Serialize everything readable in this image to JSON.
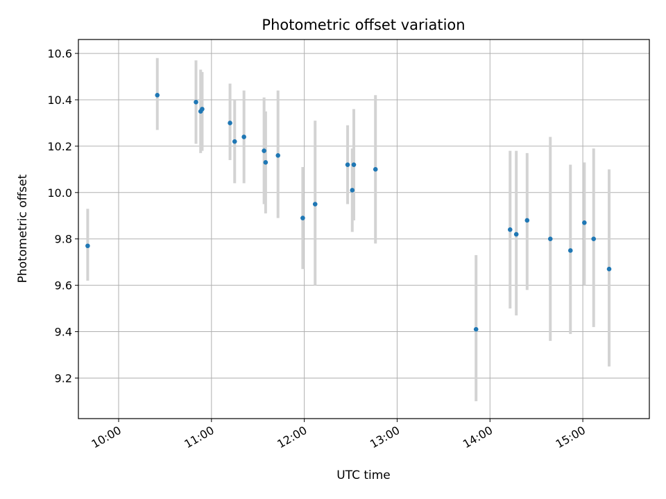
{
  "chart_data": {
    "type": "scatter",
    "title": "Photometric offset variation",
    "xlabel": "UTC time",
    "ylabel": "Photometric offset",
    "x_unit": "UTC time (HH:MM)",
    "xlim": [
      "09:34",
      "15:43"
    ],
    "ylim": [
      9.025,
      10.66
    ],
    "grid": true,
    "x_ticks": [
      "10:00",
      "11:00",
      "12:00",
      "13:00",
      "14:00",
      "15:00"
    ],
    "y_ticks": [
      "9.2",
      "9.4",
      "9.6",
      "9.8",
      "10.0",
      "10.2",
      "10.4",
      "10.6"
    ],
    "point_color": "#1f77b4",
    "errorbar_color": "#d3d3d3",
    "points": [
      {
        "x": "09:40",
        "y": 9.77,
        "ylow": 9.62,
        "yhigh": 9.93
      },
      {
        "x": "10:25",
        "y": 10.42,
        "ylow": 10.27,
        "yhigh": 10.58
      },
      {
        "x": "10:50",
        "y": 10.39,
        "ylow": 10.21,
        "yhigh": 10.57
      },
      {
        "x": "10:53",
        "y": 10.35,
        "ylow": 10.17,
        "yhigh": 10.53
      },
      {
        "x": "10:54",
        "y": 10.36,
        "ylow": 10.18,
        "yhigh": 10.52
      },
      {
        "x": "11:12",
        "y": 10.3,
        "ylow": 10.14,
        "yhigh": 10.47
      },
      {
        "x": "11:15",
        "y": 10.22,
        "ylow": 10.04,
        "yhigh": 10.4
      },
      {
        "x": "11:21",
        "y": 10.24,
        "ylow": 10.04,
        "yhigh": 10.44
      },
      {
        "x": "11:34",
        "y": 10.18,
        "ylow": 9.95,
        "yhigh": 10.41
      },
      {
        "x": "11:35",
        "y": 10.13,
        "ylow": 9.91,
        "yhigh": 10.35
      },
      {
        "x": "11:43",
        "y": 10.16,
        "ylow": 9.89,
        "yhigh": 10.44
      },
      {
        "x": "11:59",
        "y": 9.89,
        "ylow": 9.67,
        "yhigh": 10.11
      },
      {
        "x": "12:07",
        "y": 9.95,
        "ylow": 9.6,
        "yhigh": 10.31
      },
      {
        "x": "12:28",
        "y": 10.12,
        "ylow": 9.95,
        "yhigh": 10.29
      },
      {
        "x": "12:31",
        "y": 10.01,
        "ylow": 9.83,
        "yhigh": 10.19
      },
      {
        "x": "12:32",
        "y": 10.12,
        "ylow": 9.88,
        "yhigh": 10.36
      },
      {
        "x": "12:46",
        "y": 10.1,
        "ylow": 9.78,
        "yhigh": 10.42
      },
      {
        "x": "13:51",
        "y": 9.41,
        "ylow": 9.1,
        "yhigh": 9.73
      },
      {
        "x": "14:13",
        "y": 9.84,
        "ylow": 9.5,
        "yhigh": 10.18
      },
      {
        "x": "14:17",
        "y": 9.82,
        "ylow": 9.47,
        "yhigh": 10.18
      },
      {
        "x": "14:24",
        "y": 9.88,
        "ylow": 9.58,
        "yhigh": 10.17
      },
      {
        "x": "14:39",
        "y": 9.8,
        "ylow": 9.36,
        "yhigh": 10.24
      },
      {
        "x": "14:52",
        "y": 9.75,
        "ylow": 9.39,
        "yhigh": 10.12
      },
      {
        "x": "15:01",
        "y": 9.87,
        "ylow": 9.6,
        "yhigh": 10.13
      },
      {
        "x": "15:07",
        "y": 9.8,
        "ylow": 9.42,
        "yhigh": 10.19
      },
      {
        "x": "15:17",
        "y": 9.67,
        "ylow": 9.25,
        "yhigh": 10.1
      }
    ]
  }
}
